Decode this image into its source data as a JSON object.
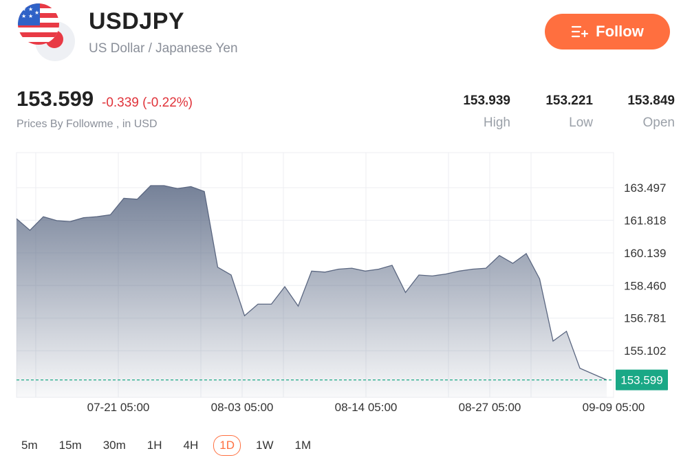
{
  "header": {
    "symbol": "USDJPY",
    "name": "US Dollar / Japanese Yen",
    "follow_label": "Follow"
  },
  "quote": {
    "price": "153.599",
    "change": "-0.339 (-0.22%)",
    "source": "Prices By Followme , in USD",
    "stats": [
      {
        "value": "153.939",
        "label": "High"
      },
      {
        "value": "153.221",
        "label": "Low"
      },
      {
        "value": "153.849",
        "label": "Open"
      }
    ]
  },
  "colors": {
    "accent": "#ff6f3f",
    "negative": "#e0333a",
    "current_price": "#1aa886",
    "line": "#5a6680"
  },
  "chart_data": {
    "type": "area",
    "x_labels": [
      "07-21 05:00",
      "08-03 05:00",
      "08-14 05:00",
      "08-27 05:00",
      "09-09 05:00"
    ],
    "y_ticks": [
      "163.497",
      "161.818",
      "160.139",
      "158.460",
      "156.781",
      "155.102"
    ],
    "ylim": [
      152.7,
      165.3
    ],
    "current_price_label": "153.599",
    "current_price": 153.599,
    "grid": true,
    "values": [
      161.9,
      161.3,
      162.0,
      161.8,
      161.75,
      161.95,
      162.0,
      162.1,
      162.95,
      162.9,
      163.6,
      163.6,
      163.45,
      163.55,
      163.3,
      159.4,
      159.0,
      156.9,
      157.5,
      157.5,
      158.4,
      157.4,
      159.2,
      159.15,
      159.3,
      159.35,
      159.2,
      159.3,
      159.5,
      158.1,
      159.0,
      158.95,
      159.05,
      159.2,
      159.3,
      159.35,
      160.0,
      159.6,
      160.1,
      158.8,
      155.6,
      156.1,
      154.2,
      153.9,
      153.599
    ]
  },
  "timeframes": {
    "items": [
      "5m",
      "15m",
      "30m",
      "1H",
      "4H",
      "1D",
      "1W",
      "1M"
    ],
    "selected": "1D"
  }
}
